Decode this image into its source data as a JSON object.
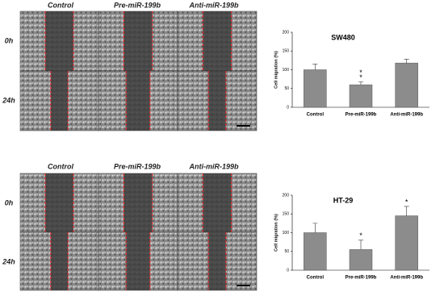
{
  "panels": [
    {
      "columns": [
        "Control",
        "Pre-miR-199b",
        "Anti-miR-199b"
      ],
      "rows": [
        "0h",
        "24h"
      ]
    },
    {
      "columns": [
        "Control",
        "Pre-miR-199b",
        "Anti-miR-199b"
      ],
      "rows": [
        "0h",
        "24h"
      ]
    }
  ],
  "chart_data": [
    {
      "type": "bar",
      "title": "SW480",
      "y_label": "Cell migration (%)",
      "categories": [
        "Control",
        "Pre-miR-199b",
        "Anti-miR-199b"
      ],
      "values": [
        100,
        60,
        118
      ],
      "errors": [
        15,
        8,
        10
      ],
      "sig": [
        [],
        [
          "*",
          "*"
        ],
        []
      ],
      "color": "#8c8c8c",
      "ylim": [
        0,
        200
      ],
      "yticks": [
        0,
        50,
        100,
        150,
        200
      ]
    },
    {
      "type": "bar",
      "title": "HT-29",
      "y_label": "Cell migration (%)",
      "categories": [
        "Control",
        "Pre-miR-199b",
        "Anti-miR-199b"
      ],
      "values": [
        100,
        55,
        145
      ],
      "errors": [
        25,
        25,
        25
      ],
      "sig": [
        [],
        [
          "*"
        ],
        [
          "*"
        ]
      ],
      "color": "#8c8c8c",
      "ylim": [
        0,
        200
      ],
      "yticks": [
        0,
        50,
        100,
        150,
        200
      ]
    }
  ]
}
